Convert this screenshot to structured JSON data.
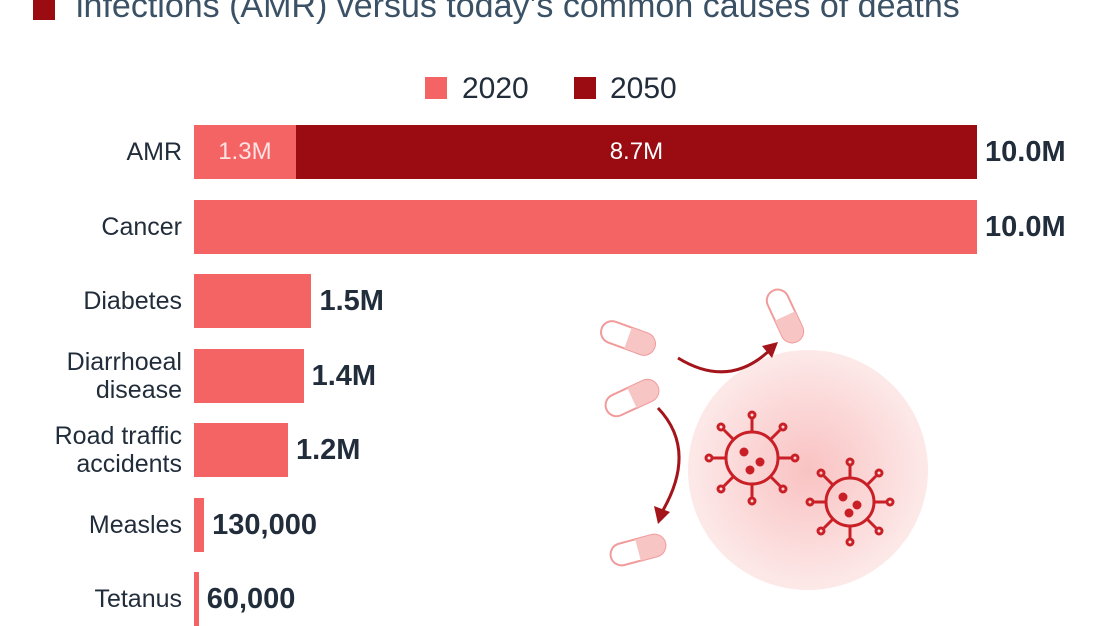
{
  "title": "infections (AMR) versus today’s common causes of deaths",
  "legend": [
    {
      "label": "2020",
      "color": "#f46464"
    },
    {
      "label": "2050",
      "color": "#9b0c12"
    }
  ],
  "chart_data": {
    "type": "bar",
    "orientation": "horizontal",
    "stacked": true,
    "title": "infections (AMR) versus today’s common causes of deaths",
    "xlabel": "",
    "ylabel": "",
    "xlim": [
      0,
      10000000
    ],
    "categories": [
      "AMR",
      "Cancer",
      "Diabetes",
      "Diarrhoeal disease",
      "Road traffic accidents",
      "Measles",
      "Tetanus"
    ],
    "category_lines": [
      [
        "AMR"
      ],
      [
        "Cancer"
      ],
      [
        "Diabetes"
      ],
      [
        "Diarrhoeal",
        "disease"
      ],
      [
        "Road traffic",
        "accidents"
      ],
      [
        "Measles"
      ],
      [
        "Tetanus"
      ]
    ],
    "series": [
      {
        "name": "2020",
        "color": "#f46464",
        "values": [
          1300000,
          10000000,
          1500000,
          1400000,
          1200000,
          130000,
          60000
        ],
        "labels": [
          "1.3M",
          "",
          "",
          "",
          "",
          "",
          ""
        ]
      },
      {
        "name": "2050",
        "color": "#9b0c12",
        "values": [
          8700000,
          0,
          0,
          0,
          0,
          0,
          0
        ],
        "labels": [
          "8.7M",
          "",
          "",
          "",
          "",
          "",
          ""
        ]
      }
    ],
    "totals": [
      "10.0M",
      "10.0M",
      "1.5M",
      "1.4M",
      "1.2M",
      "130,000",
      "60,000"
    ],
    "grid": false,
    "legend_position": "top-center"
  }
}
